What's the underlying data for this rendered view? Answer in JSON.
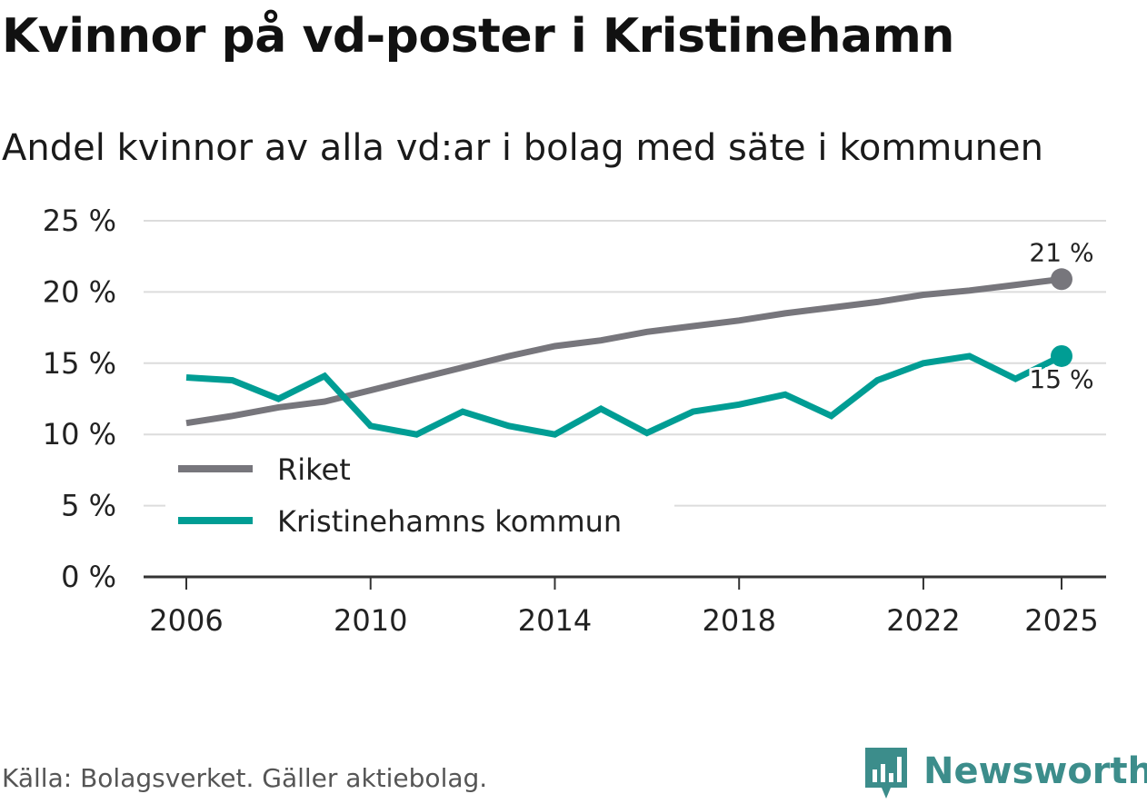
{
  "title": "Kvinnor på vd-poster i Kristinehamn",
  "subtitle": "Andel kvinnor av alla vd:ar i bolag med säte i kommunen",
  "source": "Källa: Bolagsverket. Gäller aktiebolag.",
  "brand": "Newsworthy",
  "colors": {
    "riket": "#77767c",
    "kommun": "#009d94",
    "grid": "#dcdcdc",
    "axis": "#333333",
    "brand": "#3c8d8b"
  },
  "chart_data": {
    "type": "line",
    "x": [
      2006,
      2007,
      2008,
      2009,
      2010,
      2011,
      2012,
      2013,
      2014,
      2015,
      2016,
      2017,
      2018,
      2019,
      2020,
      2021,
      2022,
      2023,
      2024,
      2025
    ],
    "series": [
      {
        "name": "Riket",
        "color": "#77767c",
        "values": [
          10.8,
          11.3,
          11.9,
          12.3,
          13.1,
          13.9,
          14.7,
          15.5,
          16.2,
          16.6,
          17.2,
          17.6,
          18.0,
          18.5,
          18.9,
          19.3,
          19.8,
          20.1,
          20.5,
          20.9
        ]
      },
      {
        "name": "Kristinehamns kommun",
        "color": "#009d94",
        "values": [
          14.0,
          13.8,
          12.5,
          14.1,
          10.6,
          10.0,
          11.6,
          10.6,
          10.0,
          11.8,
          10.1,
          11.6,
          12.1,
          12.8,
          11.3,
          13.8,
          15.0,
          15.5,
          13.9,
          15.5
        ]
      }
    ],
    "yticks": [
      0,
      5,
      10,
      15,
      20,
      25
    ],
    "ytick_labels": [
      "0 %",
      "5 %",
      "10 %",
      "15 %",
      "20 %",
      "25 %"
    ],
    "xticks": [
      2006,
      2010,
      2014,
      2018,
      2022,
      2025
    ],
    "ylim": [
      0,
      25
    ],
    "xlim": [
      2006,
      2025
    ],
    "end_labels": {
      "Riket": "21 %",
      "Kristinehamns kommun": "15 %"
    },
    "legend": [
      "Riket",
      "Kristinehamns kommun"
    ],
    "xlabel": "",
    "ylabel": ""
  }
}
